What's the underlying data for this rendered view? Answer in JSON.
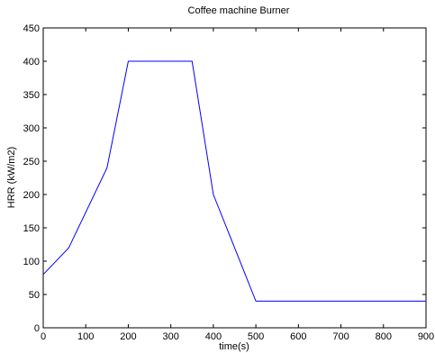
{
  "chart_data": {
    "type": "line",
    "title": "Coffee machine Burner",
    "xlabel": "time(s)",
    "ylabel": "HRR (kW/m2)",
    "xlim": [
      0,
      900
    ],
    "ylim": [
      0,
      450
    ],
    "xticks": [
      0,
      100,
      200,
      300,
      400,
      500,
      600,
      700,
      800,
      900
    ],
    "yticks": [
      0,
      50,
      100,
      150,
      200,
      250,
      300,
      350,
      400,
      450
    ],
    "grid": false,
    "series": [
      {
        "color": "#0000ff",
        "x": [
          0,
          60,
          150,
          200,
          350,
          400,
          500,
          900
        ],
        "y": [
          80,
          120,
          240,
          400,
          400,
          200,
          40,
          40
        ]
      }
    ]
  }
}
